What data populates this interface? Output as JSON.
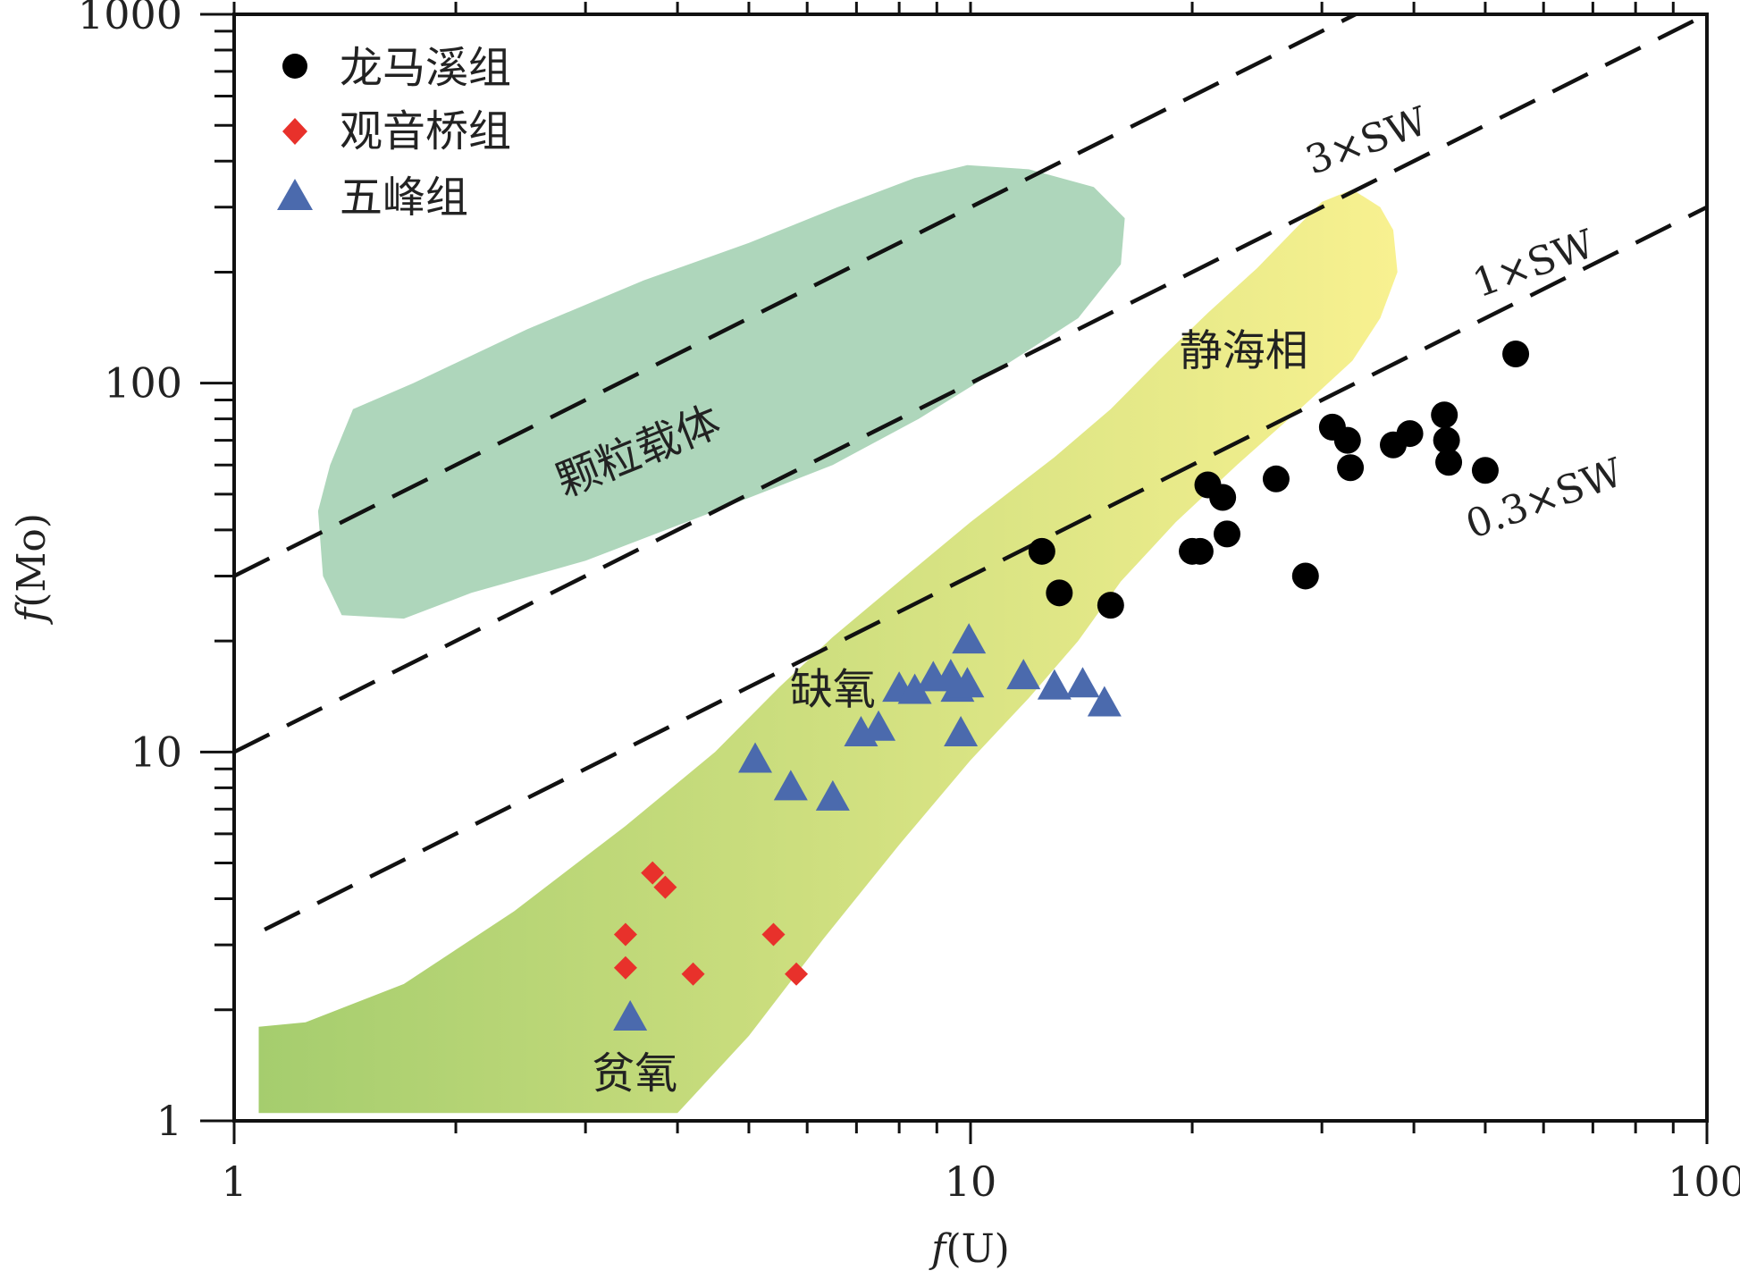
{
  "chart_data": {
    "type": "scatter",
    "x_scale": "log",
    "y_scale": "log",
    "xlim": [
      1,
      100
    ],
    "ylim": [
      1,
      1000
    ],
    "xlabel_prefix": "f",
    "xlabel_suffix": "(U)",
    "ylabel_prefix": "f",
    "ylabel_suffix": "(Mo)",
    "x_tick_labels": [
      {
        "value": 1,
        "label": "1"
      },
      {
        "value": 10,
        "label": "10"
      },
      {
        "value": 100,
        "label": "100"
      }
    ],
    "y_tick_labels": [
      {
        "value": 1,
        "label": "1"
      },
      {
        "value": 10,
        "label": "10"
      },
      {
        "value": 100,
        "label": "100"
      },
      {
        "value": 1000,
        "label": "1000"
      }
    ],
    "legend_position": "top-left",
    "series": [
      {
        "name": "龙马溪组",
        "marker": "circle",
        "color": "#000000",
        "points": [
          [
            12.5,
            35
          ],
          [
            13.2,
            27
          ],
          [
            15.5,
            25
          ],
          [
            20,
            35
          ],
          [
            20.5,
            35
          ],
          [
            21,
            53
          ],
          [
            22,
            49
          ],
          [
            22.3,
            39
          ],
          [
            26,
            55
          ],
          [
            28.5,
            30
          ],
          [
            31,
            76
          ],
          [
            32.5,
            70
          ],
          [
            32.8,
            59
          ],
          [
            37.5,
            68
          ],
          [
            39.5,
            73
          ],
          [
            44,
            82
          ],
          [
            44.3,
            70
          ],
          [
            44.6,
            61
          ],
          [
            50,
            58
          ],
          [
            55,
            120
          ]
        ]
      },
      {
        "name": "观音桥组",
        "marker": "diamond",
        "color": "#e8312b",
        "points": [
          [
            3.4,
            3.2
          ],
          [
            3.4,
            2.6
          ],
          [
            3.7,
            4.7
          ],
          [
            3.85,
            4.3
          ],
          [
            4.2,
            2.5
          ],
          [
            5.4,
            3.2
          ],
          [
            5.8,
            2.5
          ]
        ]
      },
      {
        "name": "五峰组",
        "marker": "triangle",
        "color": "#4b6aad",
        "points": [
          [
            3.45,
            1.9
          ],
          [
            5.1,
            9.5
          ],
          [
            5.7,
            8
          ],
          [
            6.5,
            7.5
          ],
          [
            7.1,
            11.2
          ],
          [
            7.5,
            11.6
          ],
          [
            8,
            14.8
          ],
          [
            8.4,
            14.6
          ],
          [
            8.9,
            15.8
          ],
          [
            9.4,
            16
          ],
          [
            9.6,
            14.8
          ],
          [
            9.7,
            11.2
          ],
          [
            9.9,
            15.2
          ],
          [
            9.95,
            20
          ],
          [
            11.8,
            16
          ],
          [
            13,
            15
          ],
          [
            14.2,
            15.2
          ],
          [
            15.2,
            13.5
          ]
        ]
      }
    ],
    "reference_lines": [
      {
        "label_num": "3",
        "label_rest": "×SW",
        "multiplier": 3,
        "style": "dashed",
        "x_start": 1,
        "x_end": 91
      },
      {
        "label_num": "1",
        "label_rest": "×SW",
        "multiplier": 1,
        "style": "dashed",
        "x_start": 1,
        "x_end": 100
      },
      {
        "label_num": "0.3",
        "label_rest": "×SW",
        "multiplier": 0.3,
        "style": "dashed",
        "x_start": 1.1,
        "x_end": 100
      }
    ],
    "regions": [
      {
        "name": "颗粒载体",
        "fill": "#aed6bb",
        "outline": [
          [
            1.45,
            85
          ],
          [
            1.75,
            100
          ],
          [
            2.5,
            140
          ],
          [
            3.6,
            190
          ],
          [
            5,
            240
          ],
          [
            6.6,
            300
          ],
          [
            8.4,
            360
          ],
          [
            9.9,
            390
          ],
          [
            12,
            380
          ],
          [
            14.7,
            340
          ],
          [
            16.2,
            280
          ],
          [
            16,
            210
          ],
          [
            14,
            150
          ],
          [
            11,
            110
          ],
          [
            8.5,
            80
          ],
          [
            6.5,
            60
          ],
          [
            4.5,
            45
          ],
          [
            3,
            33
          ],
          [
            2.1,
            27
          ],
          [
            1.7,
            23
          ],
          [
            1.4,
            23.5
          ],
          [
            1.32,
            30
          ],
          [
            1.3,
            45
          ],
          [
            1.35,
            60
          ]
        ]
      },
      {
        "name": "静海相",
        "fill_left": "#a5cd6e",
        "fill_right": "#f8f190",
        "outline": [
          [
            1.08,
            1.8
          ],
          [
            1.25,
            1.85
          ],
          [
            1.7,
            2.35
          ],
          [
            2.4,
            3.7
          ],
          [
            3.4,
            6.3
          ],
          [
            4.5,
            10
          ],
          [
            5.5,
            15
          ],
          [
            6.5,
            20.5
          ],
          [
            8,
            29
          ],
          [
            10,
            42
          ],
          [
            13,
            63
          ],
          [
            15.5,
            85
          ],
          [
            18,
            115
          ],
          [
            21,
            155
          ],
          [
            24.5,
            205
          ],
          [
            27.5,
            260
          ],
          [
            30,
            310
          ],
          [
            33,
            335
          ],
          [
            36,
            300
          ],
          [
            37.5,
            260
          ],
          [
            38,
            200
          ],
          [
            36,
            150
          ],
          [
            33,
            115
          ],
          [
            28,
            85
          ],
          [
            23,
            60
          ],
          [
            19,
            42
          ],
          [
            16,
            29
          ],
          [
            14,
            20
          ],
          [
            12,
            14
          ],
          [
            10,
            9.5
          ],
          [
            8,
            5.6
          ],
          [
            6.3,
            3.1
          ],
          [
            5,
            1.7
          ],
          [
            4,
            1.05
          ],
          [
            1.08,
            1.05
          ]
        ]
      }
    ],
    "region_labels": [
      {
        "text": "颗粒载体",
        "x": 3.6,
        "y": 60,
        "rotate": -22
      },
      {
        "text": "静海相",
        "x": 23.5,
        "y": 112,
        "rotate": 0
      },
      {
        "text": "缺氧",
        "x": 6.5,
        "y": 13.5,
        "rotate": 0
      },
      {
        "text": "贫氧",
        "x": 3.5,
        "y": 1.23,
        "rotate": 0
      }
    ],
    "line_labels": [
      {
        "key": 0,
        "x": 35,
        "y": 420,
        "rotate": -20
      },
      {
        "key": 1,
        "x": 59,
        "y": 195,
        "rotate": -20
      },
      {
        "key": 2,
        "x": 61,
        "y": 45,
        "rotate": -20
      }
    ]
  }
}
